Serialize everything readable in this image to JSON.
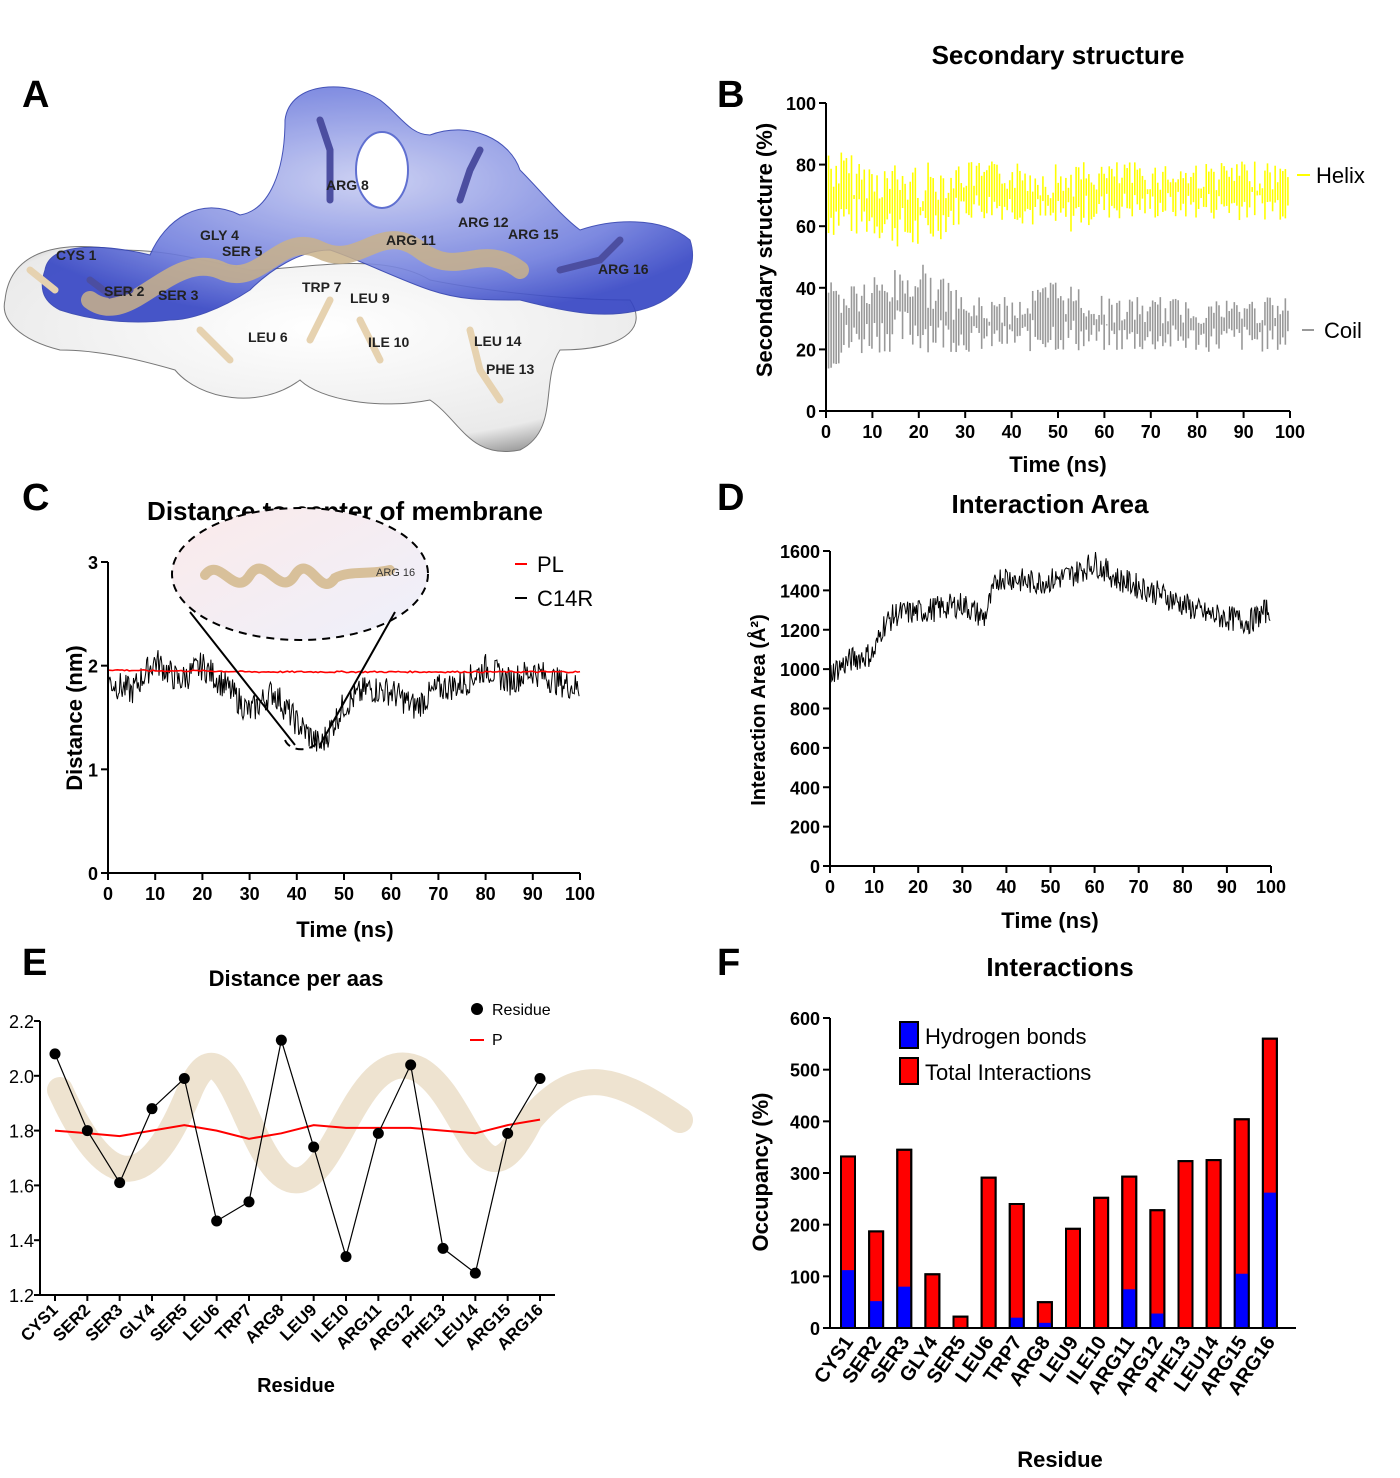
{
  "panels": {
    "A": "A",
    "B": "B",
    "C": "C",
    "D": "D",
    "E": "E",
    "F": "F"
  },
  "panel_a": {
    "residues": [
      "CYS 1",
      "SER 2",
      "SER 3",
      "GLY 4",
      "SER 5",
      "LEU 6",
      "TRP 7",
      "ARG 8",
      "LEU 9",
      "ILE 10",
      "ARG 11",
      "ARG 12",
      "PHE 13",
      "LEU 14",
      "ARG 15",
      "ARG 16"
    ]
  },
  "colors": {
    "helix": "#ffff00",
    "coil": "#999999",
    "pl": "#ff0000",
    "black": "#000000",
    "hbond": "#0000ff",
    "total": "#ff0000",
    "surface_blue": "#5b6ad6",
    "peptide": "#e6d2b0"
  },
  "chart_data": [
    {
      "id": "B",
      "type": "area",
      "title": "Secondary structure",
      "xlabel": "Time (ns)",
      "ylabel": "Secondary structure (%)",
      "xlim": [
        0,
        100
      ],
      "ylim": [
        0,
        100
      ],
      "xticks": [
        0,
        10,
        20,
        30,
        40,
        50,
        60,
        70,
        80,
        90,
        100
      ],
      "yticks": [
        0,
        20,
        40,
        60,
        80,
        100
      ],
      "series": [
        {
          "name": "Helix",
          "color": "#ffff00",
          "x": [
            0,
            10,
            20,
            30,
            40,
            50,
            60,
            70,
            80,
            90,
            100
          ],
          "upper": [
            87,
            81,
            81,
            81,
            81,
            81,
            81,
            81,
            81,
            81,
            81
          ],
          "lower": [
            56,
            56,
            50,
            62,
            62,
            56,
            62,
            62,
            62,
            62,
            62
          ]
        },
        {
          "name": "Coil",
          "color": "#999999",
          "x": [
            0,
            10,
            20,
            30,
            40,
            50,
            60,
            70,
            80,
            90,
            100
          ],
          "upper": [
            44,
            44,
            50,
            37,
            37,
            44,
            37,
            37,
            37,
            37,
            37
          ],
          "lower": [
            12,
            19,
            19,
            19,
            19,
            19,
            19,
            19,
            19,
            19,
            19
          ]
        }
      ],
      "legend": [
        "Helix",
        "Coil"
      ]
    },
    {
      "id": "C",
      "type": "line",
      "title": "Distance to center of membrane",
      "xlabel": "Time (ns)",
      "ylabel": "Distance (nm)",
      "xlim": [
        0,
        100
      ],
      "ylim": [
        0,
        3
      ],
      "xticks": [
        0,
        10,
        20,
        30,
        40,
        50,
        60,
        70,
        80,
        90,
        100
      ],
      "yticks": [
        0,
        1,
        2,
        3
      ],
      "inset_label": "ARG 16",
      "series": [
        {
          "name": "PL",
          "color": "#ff0000",
          "x": [
            0,
            10,
            20,
            30,
            40,
            50,
            60,
            70,
            80,
            90,
            100
          ],
          "y": [
            1.96,
            1.95,
            1.95,
            1.94,
            1.94,
            1.94,
            1.94,
            1.94,
            1.94,
            1.94,
            1.94
          ]
        },
        {
          "name": "C14R",
          "color": "#000000",
          "x": [
            0,
            5,
            10,
            15,
            20,
            25,
            30,
            35,
            40,
            45,
            50,
            55,
            60,
            65,
            70,
            75,
            80,
            85,
            90,
            95,
            100
          ],
          "y": [
            1.85,
            1.75,
            2.05,
            1.85,
            2.0,
            1.8,
            1.55,
            1.75,
            1.45,
            1.22,
            1.62,
            1.78,
            1.75,
            1.6,
            1.78,
            1.82,
            1.98,
            1.85,
            1.95,
            1.85,
            1.78
          ]
        }
      ]
    },
    {
      "id": "D",
      "type": "line",
      "title": "Interaction Area",
      "xlabel": "Time (ns)",
      "ylabel": "Interaction Area (Å²)",
      "xlim": [
        0,
        100
      ],
      "ylim": [
        0,
        1600
      ],
      "xticks": [
        0,
        10,
        20,
        30,
        40,
        50,
        60,
        70,
        80,
        90,
        100
      ],
      "yticks": [
        0,
        200,
        400,
        600,
        800,
        1000,
        1200,
        1400,
        1600
      ],
      "series": [
        {
          "name": "Area",
          "color": "#000000",
          "x": [
            0,
            5,
            10,
            12,
            15,
            20,
            25,
            30,
            35,
            38,
            40,
            45,
            50,
            55,
            60,
            65,
            70,
            75,
            80,
            85,
            90,
            95,
            100
          ],
          "y": [
            980,
            1050,
            1080,
            1220,
            1280,
            1290,
            1310,
            1330,
            1260,
            1460,
            1470,
            1440,
            1450,
            1480,
            1540,
            1460,
            1420,
            1380,
            1330,
            1280,
            1260,
            1240,
            1310
          ]
        }
      ]
    },
    {
      "id": "E",
      "type": "line",
      "title": "Distance per aas",
      "xlabel": "Residue",
      "ylabel": "",
      "ylim": [
        1.2,
        2.2
      ],
      "yticks": [
        1.2,
        1.4,
        1.6,
        1.8,
        2.0,
        2.2
      ],
      "ytick_labels": [
        "1.2",
        "1.4",
        "1.6",
        "1.8",
        "2.0",
        "2.2"
      ],
      "categories": [
        "CYS1",
        "SER2",
        "SER3",
        "GLY4",
        "SER5",
        "LEU6",
        "TRP7",
        "ARG8",
        "LEU9",
        "ILE10",
        "ARG11",
        "ARG12",
        "PHE13",
        "LEU14",
        "ARG15",
        "ARG16"
      ],
      "series": [
        {
          "name": "Residue",
          "color": "#000000",
          "values": [
            2.08,
            1.8,
            1.61,
            1.88,
            1.99,
            1.47,
            1.54,
            2.13,
            1.74,
            1.34,
            1.79,
            2.04,
            1.37,
            1.28,
            1.79,
            1.99
          ]
        },
        {
          "name": "P",
          "color": "#ff0000",
          "values": [
            1.8,
            1.79,
            1.78,
            1.8,
            1.82,
            1.8,
            1.77,
            1.79,
            1.82,
            1.81,
            1.81,
            1.81,
            1.8,
            1.79,
            1.82,
            1.84
          ]
        }
      ]
    },
    {
      "id": "F",
      "type": "bar",
      "title": "Interactions",
      "xlabel": "Residue",
      "ylabel": "Occupancy (%)",
      "ylim": [
        0,
        600
      ],
      "yticks": [
        0,
        100,
        200,
        300,
        400,
        500,
        600
      ],
      "categories": [
        "CYS1",
        "SER2",
        "SER3",
        "GLY4",
        "SER5",
        "LEU6",
        "TRP7",
        "ARG8",
        "LEU9",
        "ILE10",
        "ARG11",
        "ARG12",
        "PHE13",
        "LEU14",
        "ARG15",
        "ARG16"
      ],
      "series": [
        {
          "name": "Hydrogen bonds",
          "color": "#0000ff",
          "values": [
            112,
            52,
            80,
            0,
            0,
            0,
            20,
            10,
            0,
            0,
            75,
            28,
            0,
            0,
            105,
            262
          ]
        },
        {
          "name": "Total Interactions",
          "color": "#ff0000",
          "values": [
            332,
            187,
            345,
            104,
            22,
            291,
            240,
            50,
            192,
            252,
            293,
            228,
            323,
            325,
            404,
            560
          ]
        }
      ]
    }
  ]
}
